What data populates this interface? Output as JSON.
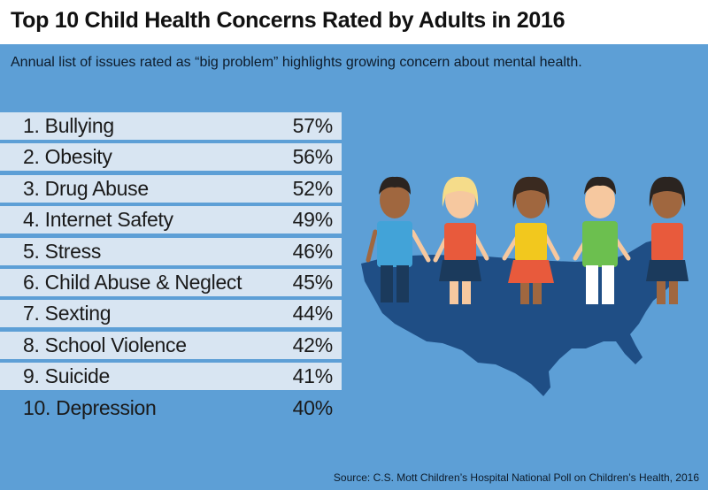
{
  "header": {
    "title": "Top 10 Child Health Concerns Rated by Adults in 2016",
    "subtitle": "Annual list of issues rated as “big problem” highlights growing concern about mental health."
  },
  "chart_data": {
    "type": "table",
    "rows": [
      {
        "label": "1. Bullying",
        "value": "57%"
      },
      {
        "label": "2. Obesity",
        "value": "56%"
      },
      {
        "label": "3. Drug Abuse",
        "value": "52%"
      },
      {
        "label": "4. Internet Safety",
        "value": "49%"
      },
      {
        "label": "5. Stress",
        "value": "46%"
      },
      {
        "label": "6. Child Abuse & Neglect",
        "value": "45%"
      },
      {
        "label": "7. Sexting",
        "value": "44%"
      },
      {
        "label": "8. School Violence",
        "value": "42%"
      },
      {
        "label": "9. Suicide",
        "value": "41%"
      },
      {
        "label": "10. Depression",
        "value": "40%"
      }
    ]
  },
  "footer": {
    "source": "Source: C.S. Mott Children’s Hospital National Poll on Children’s Health, 2016"
  },
  "colors": {
    "background": "#5d9fd6",
    "row_shade": "#d8e5f2",
    "map": "#1f4e85"
  }
}
